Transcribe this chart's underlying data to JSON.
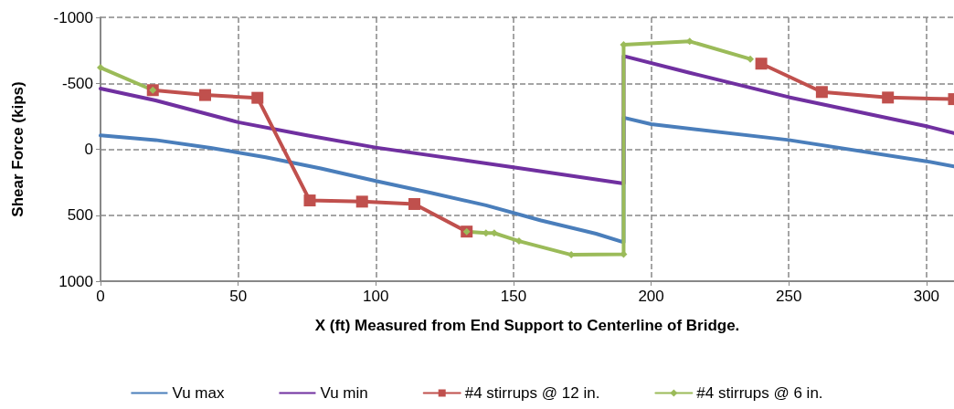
{
  "chart_data": {
    "type": "line",
    "xlabel": "X (ft) Measured from End Support to Centerline of Bridge.",
    "ylabel": "Shear Force (kips)",
    "xlim": [
      0,
      310
    ],
    "xticks": [
      0,
      50,
      100,
      150,
      200,
      250,
      300
    ],
    "ylim": [
      1000,
      -1000
    ],
    "yticks": [
      -1000,
      -500,
      0,
      500,
      1000
    ],
    "grid": true,
    "legend": "bottom",
    "series": [
      {
        "name": "Vu max",
        "color": "#4a7ebb",
        "marker": "none",
        "x": [
          0,
          20,
          40,
          60,
          80,
          100,
          120,
          140,
          160,
          180,
          190,
          190,
          200,
          250,
          300,
          310
        ],
        "values": [
          -105,
          -70,
          -10,
          60,
          145,
          240,
          330,
          425,
          540,
          640,
          705,
          -240,
          -190,
          -70,
          91,
          130
        ]
      },
      {
        "name": "Vu min",
        "color": "#7030a0",
        "marker": "none",
        "x": [
          0,
          20,
          50,
          75,
          100,
          150,
          190,
          190,
          214,
          250,
          300,
          310
        ],
        "values": [
          -460,
          -370,
          -205,
          -105,
          -13,
          137,
          260,
          -707,
          -580,
          -395,
          -175,
          -122
        ]
      },
      {
        "name": "#4 stirrups @ 12 in.",
        "color": "#c0504d",
        "marker": "square",
        "x": [
          19,
          38,
          57,
          76,
          95,
          114,
          133,
          180,
          240,
          262,
          286,
          310
        ],
        "values": [
          -448,
          -411,
          -390,
          388,
          397,
          415,
          624,
          null,
          -649,
          -434,
          -392,
          -380
        ]
      },
      {
        "name": "#4 stirrups @ 6 in.",
        "color": "#9bbb59",
        "marker": "diamond",
        "x": [
          0,
          19,
          70,
          133,
          140,
          143,
          152,
          171,
          190,
          190,
          214,
          236
        ],
        "values": [
          -619,
          -448,
          null,
          624,
          635,
          635,
          696,
          800,
          795,
          -793,
          -818,
          -684
        ]
      }
    ]
  }
}
